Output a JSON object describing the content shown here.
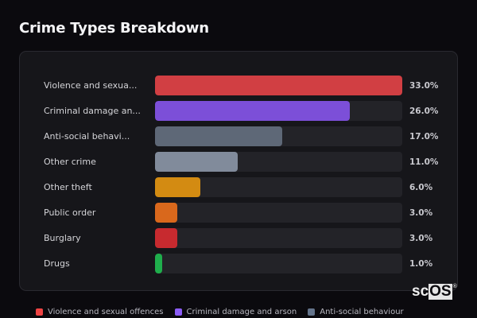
{
  "title": "Crime Types Breakdown",
  "rows": [
    {
      "label": "Violence and sexua...",
      "full_label": "Violence and sexual offences",
      "value": 33.0,
      "value_text": "33.0%",
      "color": "#d13f43"
    },
    {
      "label": "Criminal damage an...",
      "full_label": "Criminal damage and arson",
      "value": 26.0,
      "value_text": "26.0%",
      "color": "#7c4fd8"
    },
    {
      "label": "Anti-social behavi...",
      "full_label": "Anti-social behaviour",
      "value": 17.0,
      "value_text": "17.0%",
      "color": "#5e6877"
    },
    {
      "label": "Other crime",
      "full_label": "Other crime",
      "value": 11.0,
      "value_text": "11.0%",
      "color": "#818b9b"
    },
    {
      "label": "Other theft",
      "full_label": "Other theft",
      "value": 6.0,
      "value_text": "6.0%",
      "color": "#d38b12"
    },
    {
      "label": "Public order",
      "full_label": "Public order",
      "value": 3.0,
      "value_text": "3.0%",
      "color": "#d9681c"
    },
    {
      "label": "Burglary",
      "full_label": "Burglary",
      "value": 3.0,
      "value_text": "3.0%",
      "color": "#c72a2f"
    },
    {
      "label": "Drugs",
      "full_label": "Drugs",
      "value": 1.0,
      "value_text": "1.0%",
      "color": "#1fae4c"
    }
  ],
  "legend": [
    {
      "label": "Violence and sexual offences",
      "color": "#ef4444"
    },
    {
      "label": "Criminal damage and arson",
      "color": "#8b5cf6"
    },
    {
      "label": "Anti-social behaviour",
      "color": "#64748b"
    }
  ],
  "watermark": {
    "part1": "sc",
    "part2": "OS",
    "mark": "®"
  },
  "chart_data": {
    "type": "bar",
    "orientation": "horizontal",
    "title": "Crime Types Breakdown",
    "categories": [
      "Violence and sexual offences",
      "Criminal damage and arson",
      "Anti-social behaviour",
      "Other crime",
      "Other theft",
      "Public order",
      "Burglary",
      "Drugs"
    ],
    "values": [
      33.0,
      26.0,
      17.0,
      11.0,
      6.0,
      3.0,
      3.0,
      1.0
    ],
    "unit": "%",
    "xlabel": "",
    "ylabel": "",
    "xlim": [
      0,
      33
    ],
    "grid": false,
    "legend_position": "bottom",
    "legend_entries": [
      "Violence and sexual offences",
      "Criminal damage and arson",
      "Anti-social behaviour"
    ]
  }
}
